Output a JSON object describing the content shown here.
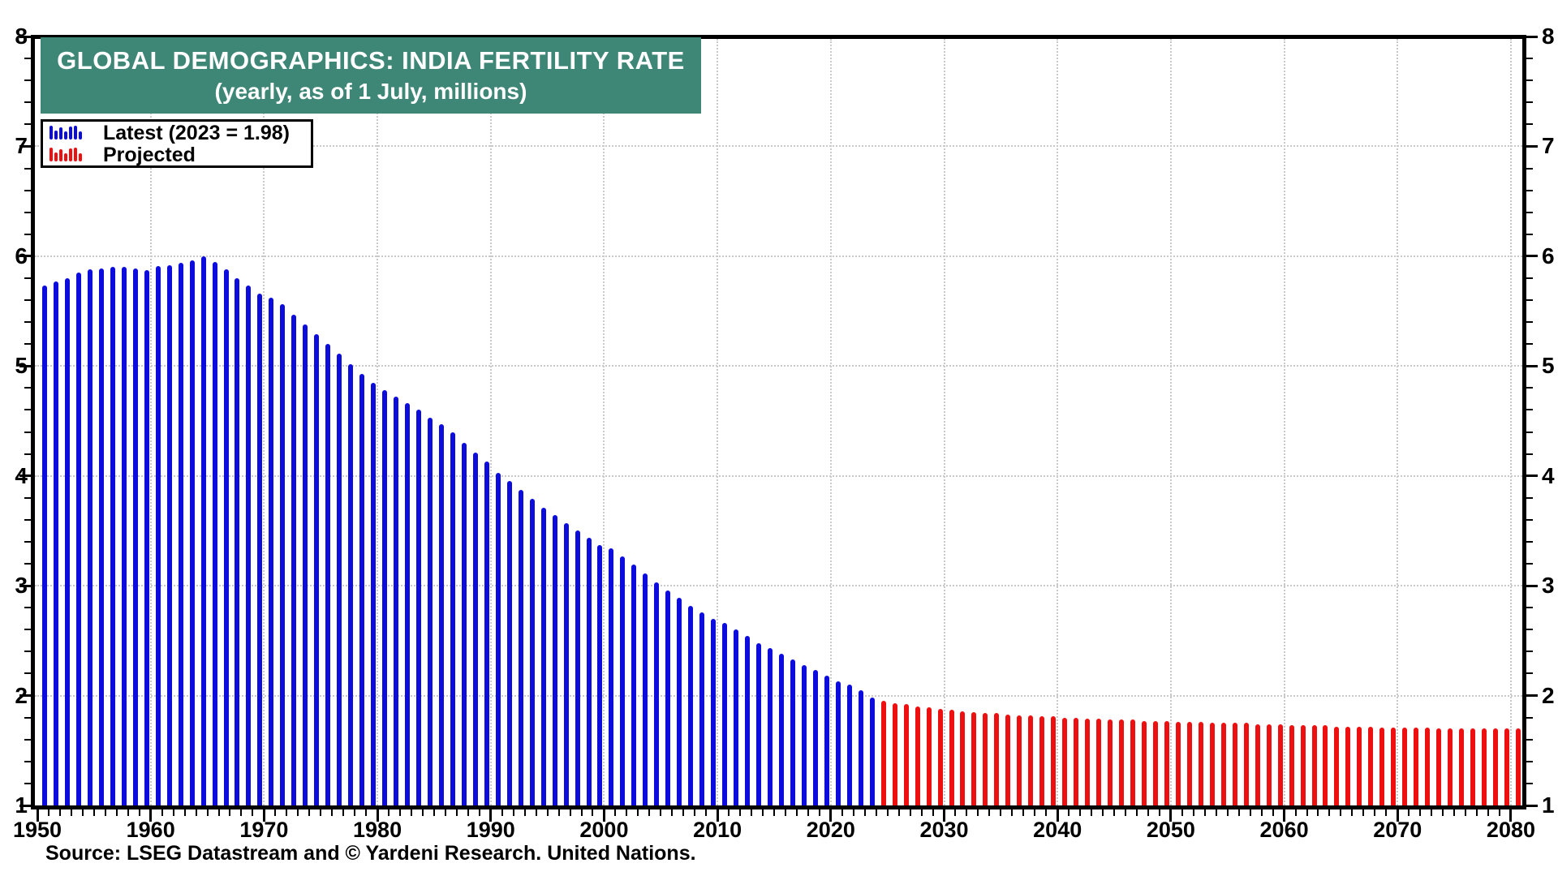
{
  "title": {
    "line1": "GLOBAL DEMOGRAPHICS: INDIA FERTILITY RATE",
    "line2": "(yearly, as of 1 July, millions)"
  },
  "legend": {
    "items": [
      {
        "label": "Latest (2023 = 1.98)",
        "series": "latest"
      },
      {
        "label": "Projected",
        "series": "projected"
      }
    ]
  },
  "source": "Source: LSEG Datastream and © Yardeni Research. United Nations.",
  "colors": {
    "latest_blue": "#0c0cdd",
    "projected_red": "#ee1010",
    "title_teal": "#3e8676",
    "grid_gray": "#c9c9c9",
    "axis_black": "#000000"
  },
  "chart_data": {
    "type": "bar",
    "title": "GLOBAL DEMOGRAPHICS: INDIA FERTILITY RATE",
    "subtitle": "(yearly, as of 1 July, millions)",
    "grid": true,
    "legend_position": "top-left",
    "x_axis": {
      "min": 1950,
      "max": 2080,
      "major_tick_interval": 10,
      "minor_tick_interval": 1,
      "tick_labels": [
        1950,
        1960,
        1970,
        1980,
        1990,
        2000,
        2010,
        2020,
        2030,
        2040,
        2050,
        2060,
        2070,
        2080
      ]
    },
    "y_axis": {
      "min": 1,
      "max": 8,
      "major_tick_interval": 1,
      "minor_tick_interval": 0.2,
      "tick_labels": [
        1,
        2,
        3,
        4,
        5,
        6,
        7,
        8
      ],
      "sides": [
        "left",
        "right"
      ]
    },
    "series": [
      {
        "name": "Latest (2023 = 1.98)",
        "color_key": "latest_blue",
        "start_year": 1950,
        "end_year": 2023,
        "values": [
          5.73,
          5.77,
          5.8,
          5.85,
          5.88,
          5.89,
          5.9,
          5.9,
          5.89,
          5.87,
          5.91,
          5.92,
          5.94,
          5.96,
          6.0,
          5.95,
          5.88,
          5.8,
          5.73,
          5.66,
          5.62,
          5.56,
          5.47,
          5.38,
          5.29,
          5.2,
          5.11,
          5.02,
          4.93,
          4.85,
          4.78,
          4.72,
          4.66,
          4.6,
          4.53,
          4.47,
          4.4,
          4.3,
          4.21,
          4.13,
          4.03,
          3.95,
          3.87,
          3.79,
          3.71,
          3.64,
          3.57,
          3.5,
          3.44,
          3.37,
          3.34,
          3.27,
          3.19,
          3.11,
          3.03,
          2.96,
          2.89,
          2.82,
          2.76,
          2.7,
          2.66,
          2.6,
          2.54,
          2.48,
          2.43,
          2.38,
          2.33,
          2.28,
          2.23,
          2.18,
          2.13,
          2.1,
          2.05,
          1.98
        ]
      },
      {
        "name": "Projected",
        "color_key": "projected_red",
        "start_year": 2024,
        "end_year": 2080,
        "values": [
          1.95,
          1.93,
          1.92,
          1.9,
          1.89,
          1.88,
          1.87,
          1.86,
          1.85,
          1.84,
          1.84,
          1.83,
          1.82,
          1.82,
          1.81,
          1.81,
          1.8,
          1.8,
          1.79,
          1.79,
          1.78,
          1.78,
          1.78,
          1.77,
          1.77,
          1.77,
          1.76,
          1.76,
          1.76,
          1.75,
          1.75,
          1.75,
          1.75,
          1.74,
          1.74,
          1.74,
          1.73,
          1.73,
          1.73,
          1.73,
          1.72,
          1.72,
          1.72,
          1.72,
          1.71,
          1.71,
          1.71,
          1.71,
          1.71,
          1.7,
          1.7,
          1.7,
          1.7,
          1.7,
          1.7,
          1.7,
          1.7
        ]
      }
    ],
    "annotations": {
      "latest_year": 2023,
      "latest_value": 1.98
    }
  }
}
